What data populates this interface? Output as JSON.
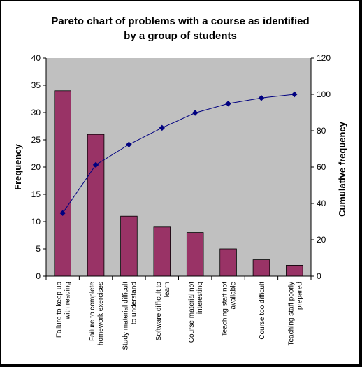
{
  "chart_data": {
    "type": "bar",
    "title_lines": [
      "Pareto chart of problems with a course as identified",
      "by a group of students"
    ],
    "categories": [
      [
        "Failure to keep up",
        "with reading"
      ],
      [
        "Failure to complete",
        "homework exercises"
      ],
      [
        "Study material difficult",
        "to understand"
      ],
      [
        "Software difficult to",
        "learn"
      ],
      [
        "Course material not",
        "interesting"
      ],
      [
        "Teaching staff not",
        "available"
      ],
      [
        "Course too difficult"
      ],
      [
        "Teaching staff poorly",
        "prepared"
      ]
    ],
    "series": [
      {
        "name": "Frequency",
        "type": "bar",
        "axis": "left",
        "values": [
          34,
          26,
          11,
          9,
          8,
          5,
          3,
          2
        ]
      },
      {
        "name": "Cumulative frequency",
        "type": "line",
        "axis": "right",
        "values": [
          34.7,
          61.2,
          72.4,
          81.6,
          89.8,
          94.9,
          98.0,
          100
        ]
      }
    ],
    "ylabel": "Frequency",
    "y2label": "Cumulative frequency",
    "ylim": [
      0,
      40
    ],
    "y2lim": [
      0,
      120
    ],
    "yticks": [
      0,
      5,
      10,
      15,
      20,
      25,
      30,
      35,
      40
    ],
    "y2ticks": [
      0,
      20,
      40,
      60,
      80,
      100,
      120
    ],
    "grid": false,
    "legend": "none",
    "colors": {
      "plot_bg": "#c0c0c0",
      "bar": "#993366",
      "line": "#000080"
    }
  }
}
